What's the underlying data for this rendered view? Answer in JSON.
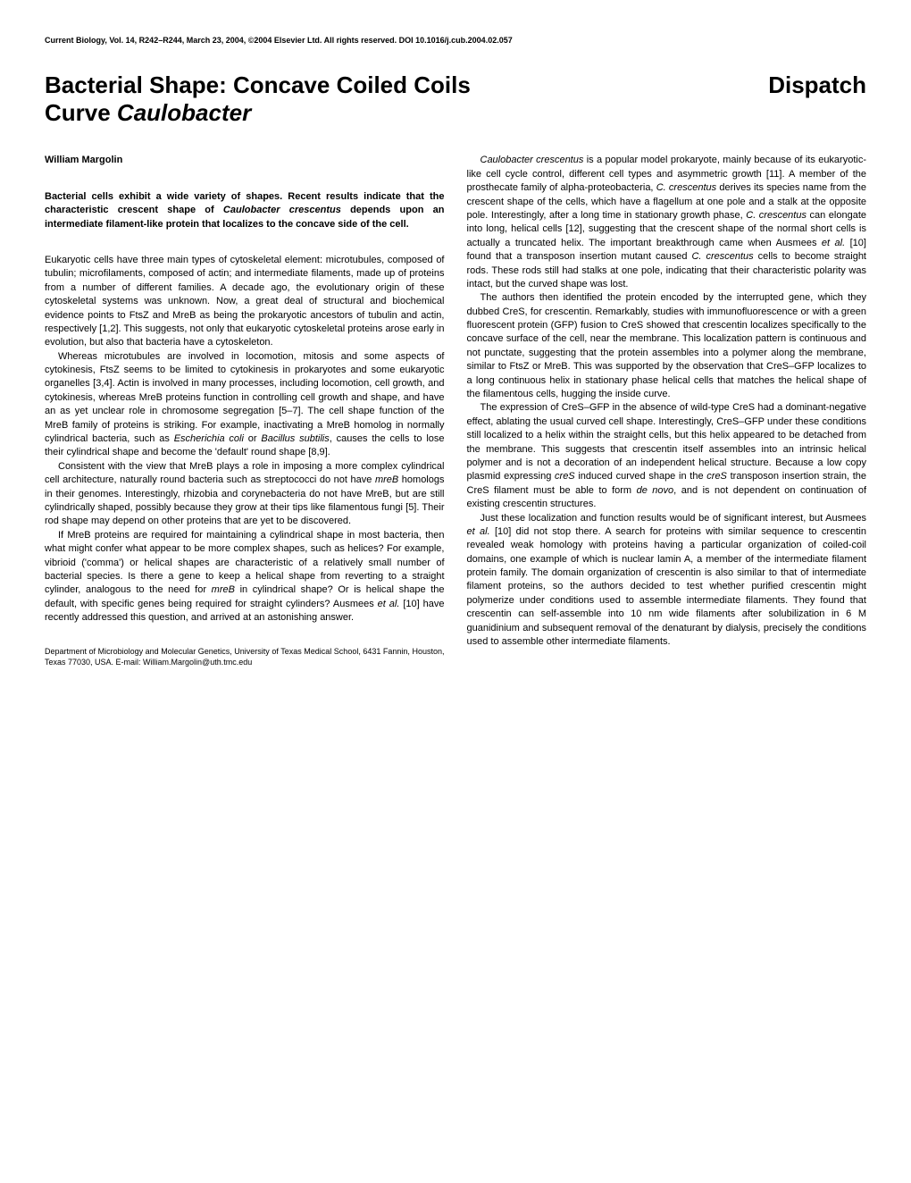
{
  "header": "Current Biology, Vol. 14, R242–R244, March 23, 2004, ©2004 Elsevier Ltd. All rights reserved. DOI 10.1016/j.cub.2004.02.057",
  "title_line1": "Bacterial Shape: Concave Coiled Coils",
  "title_line2": "Curve ",
  "title_line2_italic": "Caulobacter",
  "dispatch": "Dispatch",
  "author": "William Margolin",
  "abstract_p1": "Bacterial cells exhibit a wide variety of shapes. Recent results indicate that the characteristic crescent shape of ",
  "abstract_p1_italic": "Caulobacter crescentus",
  "abstract_p1_end": " depends upon an intermediate filament-like protein that localizes to the concave side of the cell.",
  "left_p1": "Eukaryotic cells have three main types of cytoskeletal element: microtubules, composed of tubulin; microfilaments, composed of actin; and intermediate filaments, made up of proteins from a number of different families. A decade ago, the evolutionary origin of these cytoskeletal systems was unknown. Now, a great deal of structural and biochemical evidence points to FtsZ and MreB as being the prokaryotic ancestors of tubulin and actin, respectively [1,2]. This suggests, not only that eukaryotic cytoskeletal proteins arose early in evolution, but also that bacteria have a cytoskeleton.",
  "left_p2": "Whereas microtubules are involved in locomotion, mitosis and some aspects of cytokinesis, FtsZ seems to be limited to cytokinesis in prokaryotes and some eukaryotic organelles [3,4]. Actin is involved in many processes, including locomotion, cell growth, and cytokinesis, whereas MreB proteins function in controlling cell growth and shape, and have an as yet unclear role in chromosome segregation [5–7]. The cell shape function of the MreB family of proteins is striking. For example, inactivating a MreB homolog in normally cylindrical bacteria, such as ",
  "left_p2_italic1": "Escherichia coli",
  "left_p2_mid": " or ",
  "left_p2_italic2": "Bacillus subtilis",
  "left_p2_end": ", causes the cells to lose their cylindrical shape and become the 'default' round shape [8,9].",
  "left_p3": "Consistent with the view that MreB plays a role in imposing a more complex cylindrical cell architecture, naturally round bacteria such as streptococci do not have ",
  "left_p3_italic": "mreB",
  "left_p3_end": " homologs in their genomes. Interestingly, rhizobia and corynebacteria do not have MreB, but are still cylindrically shaped, possibly because they grow at their tips like filamentous fungi [5]. Their rod shape may depend on other proteins that are yet to be discovered.",
  "left_p4": "If MreB proteins are required for maintaining a cylindrical shape in most bacteria, then what might confer what appear to be more complex shapes, such as helices? For example, vibrioid ('comma') or helical shapes are characteristic of a relatively small number of bacterial species. Is there a gene to keep a helical shape from reverting to a straight cylinder, analogous to the need for ",
  "left_p4_italic1": "mreB",
  "left_p4_mid": " in cylindrical shape? Or is helical shape the default, with specific genes being required for straight cylinders? Ausmees ",
  "left_p4_italic2": "et al.",
  "left_p4_end": " [10] have recently addressed this question, and arrived at an astonishing answer.",
  "affiliation": "Department of Microbiology and Molecular Genetics, University of Texas Medical School, 6431 Fannin, Houston, Texas 77030, USA. E-mail: William.Margolin@uth.tmc.edu",
  "right_p1_italic1": "Caulobacter crescentus",
  "right_p1_a": " is a popular model prokaryote, mainly because of its eukaryotic-like cell cycle control, different cell types and asymmetric growth [11]. A member of the prosthecate family of alpha-proteobacteria, ",
  "right_p1_italic2": "C. crescentus",
  "right_p1_b": " derives its species name from the crescent shape of the cells, which have a flagellum at one pole and a stalk at the opposite pole. Interestingly, after a long time in stationary growth phase, ",
  "right_p1_italic3": "C. crescentus",
  "right_p1_c": " can elongate into long, helical cells [12], suggesting that the crescent shape of the normal short cells is actually a truncated helix. The important breakthrough came when Ausmees ",
  "right_p1_italic4": "et al.",
  "right_p1_d": " [10] found that a transposon insertion mutant caused ",
  "right_p1_italic5": "C. crescentus",
  "right_p1_e": " cells to become straight rods. These rods still had stalks at one pole, indicating that their characteristic polarity was intact, but the curved shape was lost.",
  "right_p2": "The authors then identified the protein encoded by the interrupted gene, which they dubbed CreS, for crescentin. Remarkably, studies with immunofluorescence or with a green fluorescent protein (GFP) fusion to CreS showed that crescentin localizes specifically to the concave surface of the cell, near the membrane. This localization pattern is continuous and not punctate, suggesting that the protein assembles into a polymer along the membrane, similar to FtsZ or MreB. This was supported by the observation that CreS–GFP localizes to a long continuous helix in stationary phase helical cells that matches the helical shape of the filamentous cells, hugging the inside curve.",
  "right_p3_a": "The expression of CreS–GFP in the absence of wild-type CreS had a dominant-negative effect, ablating the usual curved cell shape. Interestingly, CreS–GFP under these conditions still localized to a helix within the straight cells, but this helix appeared to be detached from the membrane. This suggests that crescentin itself assembles into an intrinsic helical polymer and is not a decoration of an independent helical structure. Because a low copy plasmid expressing ",
  "right_p3_italic1": "creS",
  "right_p3_b": " induced curved shape in the ",
  "right_p3_italic2": "creS",
  "right_p3_c": " transposon insertion strain, the CreS filament must be able to form ",
  "right_p3_italic3": "de novo",
  "right_p3_d": ", and is not dependent on continuation of existing crescentin structures.",
  "right_p4_a": "Just these localization and function results would be of significant interest, but Ausmees ",
  "right_p4_italic1": "et al.",
  "right_p4_b": " [10] did not stop there. A search for proteins with similar sequence to crescentin revealed weak homology with proteins having a particular organization of coiled-coil domains, one example of which is nuclear lamin A, a member of the intermediate filament protein family. The domain organization of crescentin is also similar to that of intermediate filament proteins, so the authors decided to test whether purified crescentin might polymerize under conditions used to assemble intermediate filaments. They found that crescentin can self-assemble into 10 nm wide filaments after solubilization in 6 M guanidinium and subsequent removal of the denaturant by dialysis, precisely the conditions used to assemble other intermediate filaments."
}
